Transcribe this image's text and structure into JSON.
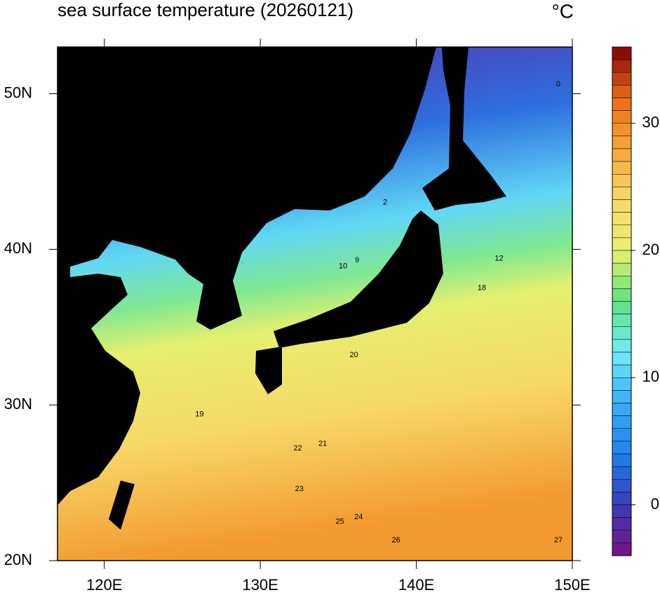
{
  "map": {
    "title": "sea surface temperature (20260121)",
    "unit": "°C",
    "xlim": [
      117,
      150
    ],
    "xticks": [
      {
        "value": 120,
        "label": "120E"
      },
      {
        "value": 130,
        "label": "130E"
      },
      {
        "value": 140,
        "label": "140E"
      },
      {
        "value": 150,
        "label": "150E"
      }
    ],
    "ylim": [
      20,
      53
    ],
    "yticks": [
      {
        "value": 20,
        "label": "20N"
      },
      {
        "value": 30,
        "label": "30N"
      },
      {
        "value": 40,
        "label": "40N"
      },
      {
        "value": 50,
        "label": "50N"
      }
    ],
    "colorbar": {
      "clim": [
        -4,
        36
      ],
      "ticks": [
        0,
        10,
        20,
        30
      ],
      "colormap": [
        "#7a127c",
        "#3a3cb8",
        "#2080f0",
        "#3aaef5",
        "#70ecf8",
        "#60e080",
        "#e8f070",
        "#f8d868",
        "#f5a838",
        "#ec6a1a",
        "#800000"
      ]
    },
    "contour_labels": [
      {
        "value": 20,
        "lon": 136.0,
        "lat": 33.2
      },
      {
        "value": 21,
        "lon": 134.0,
        "lat": 27.5
      },
      {
        "value": 22,
        "lon": 132.4,
        "lat": 27.2
      },
      {
        "value": 23,
        "lon": 132.5,
        "lat": 24.6
      },
      {
        "value": 24,
        "lon": 136.3,
        "lat": 22.8
      },
      {
        "value": 25,
        "lon": 135.1,
        "lat": 22.5
      },
      {
        "value": 26,
        "lon": 138.7,
        "lat": 21.3
      },
      {
        "value": 27,
        "lon": 149.1,
        "lat": 21.3
      },
      {
        "value": 19,
        "lon": 126.1,
        "lat": 29.4
      },
      {
        "value": 18,
        "lon": 144.2,
        "lat": 37.5
      },
      {
        "value": 12,
        "lon": 145.3,
        "lat": 39.4
      },
      {
        "value": 9,
        "lon": 136.2,
        "lat": 39.3
      },
      {
        "value": 10,
        "lon": 135.3,
        "lat": 38.9
      },
      {
        "value": 0,
        "lon": 149.1,
        "lat": 50.6
      },
      {
        "value": 2,
        "lon": 138.0,
        "lat": 43.0
      }
    ]
  }
}
